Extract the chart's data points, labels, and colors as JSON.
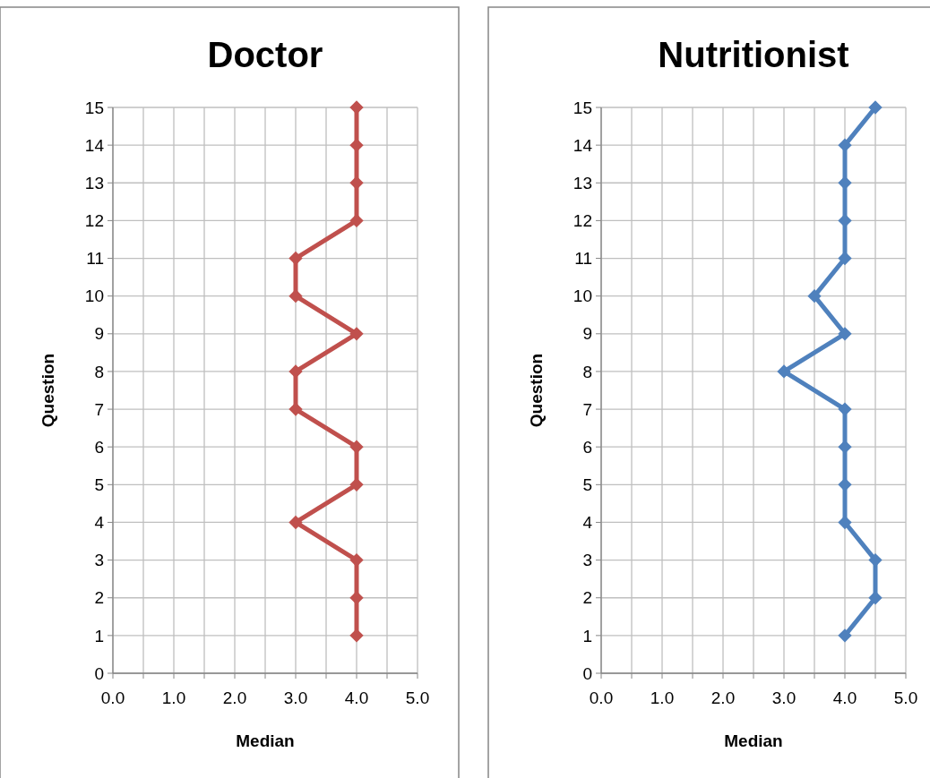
{
  "chart_data": [
    {
      "type": "line",
      "title": "Doctor",
      "xlabel": "Median",
      "ylabel": "Question",
      "marker": "diamond",
      "grid": true,
      "xlim": [
        0,
        5
      ],
      "xticks": [
        {
          "value": 0,
          "label": "0.0"
        },
        {
          "value": 0.5,
          "label": null
        },
        {
          "value": 1,
          "label": "1.0"
        },
        {
          "value": 1.5,
          "label": null
        },
        {
          "value": 2,
          "label": "2.0"
        },
        {
          "value": 2.5,
          "label": null
        },
        {
          "value": 3,
          "label": "3.0"
        },
        {
          "value": 3.5,
          "label": null
        },
        {
          "value": 4,
          "label": "4.0"
        },
        {
          "value": 4.5,
          "label": null
        },
        {
          "value": 5,
          "label": "5.0"
        }
      ],
      "ylim": [
        0,
        15
      ],
      "yticks": [
        0,
        1,
        2,
        3,
        4,
        5,
        6,
        7,
        8,
        9,
        10,
        11,
        12,
        13,
        14,
        15
      ],
      "series": [
        {
          "color": "#c0504d",
          "x": [
            4,
            4,
            4,
            3,
            4,
            4,
            3,
            3,
            4,
            3,
            3,
            4,
            4,
            4,
            4
          ],
          "values": [
            1,
            2,
            3,
            4,
            5,
            6,
            7,
            8,
            9,
            10,
            11,
            12,
            13,
            14,
            15
          ]
        }
      ]
    },
    {
      "type": "line",
      "title": "Nutritionist",
      "xlabel": "Median",
      "ylabel": "Question",
      "marker": "diamond",
      "grid": true,
      "xlim": [
        0,
        5
      ],
      "xticks": [
        {
          "value": 0,
          "label": "0.0"
        },
        {
          "value": 0.5,
          "label": null
        },
        {
          "value": 1,
          "label": "1.0"
        },
        {
          "value": 1.5,
          "label": null
        },
        {
          "value": 2,
          "label": "2.0"
        },
        {
          "value": 2.5,
          "label": null
        },
        {
          "value": 3,
          "label": "3.0"
        },
        {
          "value": 3.5,
          "label": null
        },
        {
          "value": 4,
          "label": "4.0"
        },
        {
          "value": 4.5,
          "label": null
        },
        {
          "value": 5,
          "label": "5.0"
        }
      ],
      "ylim": [
        0,
        15
      ],
      "yticks": [
        0,
        1,
        2,
        3,
        4,
        5,
        6,
        7,
        8,
        9,
        10,
        11,
        12,
        13,
        14,
        15
      ],
      "series": [
        {
          "color": "#4f81bd",
          "x": [
            4,
            4.5,
            4.5,
            4,
            4,
            4,
            4,
            3,
            4,
            3.5,
            4,
            4,
            4,
            4,
            4.5
          ],
          "values": [
            1,
            2,
            3,
            4,
            5,
            6,
            7,
            8,
            9,
            10,
            11,
            12,
            13,
            14,
            15
          ]
        }
      ]
    }
  ]
}
